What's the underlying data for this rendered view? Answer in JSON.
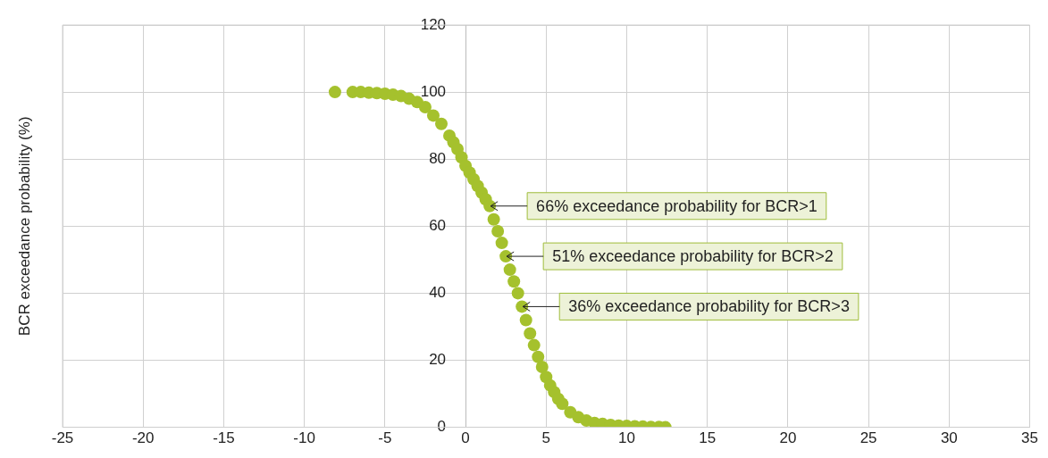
{
  "chart_data": {
    "type": "scatter",
    "ylabel": "BCR exceedance probability (%)",
    "x": [
      -8.1,
      -7,
      -6.5,
      -6,
      -5.5,
      -5,
      -4.5,
      -4,
      -3.5,
      -3,
      -2.5,
      -2,
      -1.5,
      -1,
      -0.75,
      -0.5,
      -0.25,
      0,
      0.25,
      0.5,
      0.75,
      1,
      1.25,
      1.5,
      1.75,
      2,
      2.25,
      2.5,
      2.75,
      3,
      3.25,
      3.5,
      3.75,
      4,
      4.25,
      4.5,
      4.75,
      5,
      5.25,
      5.5,
      5.75,
      6,
      6.5,
      7,
      7.5,
      8,
      8.5,
      9,
      9.5,
      10,
      10.5,
      11,
      11.5,
      12,
      12.4
    ],
    "series": [
      {
        "color": "#a5c12d",
        "values": [
          100,
          100,
          100,
          99.8,
          99.7,
          99.5,
          99.2,
          98.8,
          98,
          97,
          95.5,
          93,
          90.5,
          87,
          85,
          83,
          80.5,
          78,
          76,
          74,
          72,
          70,
          68,
          66,
          62,
          58.5,
          55,
          51,
          47,
          43.5,
          40,
          36,
          32,
          28,
          24.5,
          21,
          18,
          15,
          12.5,
          10.5,
          8.5,
          7,
          4.5,
          3,
          2,
          1.3,
          1,
          0.7,
          0.5,
          0.4,
          0.3,
          0.2,
          0.1,
          0.1,
          0
        ]
      }
    ],
    "xlim": [
      -25,
      35
    ],
    "xticks": [
      -25,
      -20,
      -15,
      -10,
      -5,
      0,
      5,
      10,
      15,
      20,
      25,
      30,
      35
    ],
    "ylim": [
      0,
      120
    ],
    "yticks": [
      0,
      20,
      40,
      60,
      80,
      100,
      120
    ],
    "grid": true,
    "legend": false,
    "marker": "circle",
    "annotations": [
      {
        "text": "66% exceedance probability for BCR>1",
        "x": 1.5,
        "y": 66
      },
      {
        "text": "51% exceedance probability for BCR>2",
        "x": 2.5,
        "y": 51
      },
      {
        "text": "36% exceedance probability for BCR>3",
        "x": 3.5,
        "y": 36
      }
    ]
  }
}
